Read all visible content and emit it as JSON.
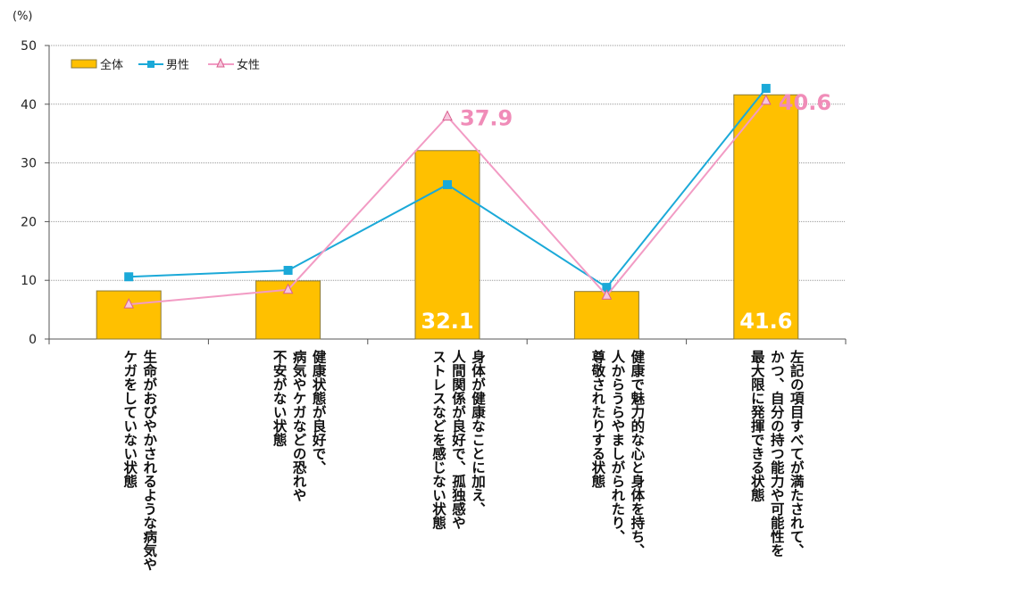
{
  "chart_data": {
    "type": "bar+line",
    "unit_label": "(%)",
    "ylim": [
      0,
      50
    ],
    "yticks": [
      0,
      10,
      20,
      30,
      40,
      50
    ],
    "grid": true,
    "legend_placement": "top-left",
    "categories": [
      "生命がおびやかされるような病気や\nケガをしていない状態",
      "健康状態が良好で、\n病気やケガなどの恐れや\n不安がない状態",
      "身体が健康なことに加え、\n人間関係が良好で、孤独感や\nストレスなどを感じない状態",
      "健康で魅力的な心と身体を持ち、\n人からうらやましがられたり、\n尊敬されたりする状態",
      "左記の項目すべてが満たされて、\nかつ、自分の持つ能力や可能性を\n最大限に発揮できる状態"
    ],
    "series": [
      {
        "name": "全体",
        "type": "bar",
        "color": "#FFC000",
        "values": [
          8.2,
          9.9,
          32.1,
          8.1,
          41.6
        ],
        "data_labels": [
          null,
          null,
          "32.1",
          null,
          "41.6"
        ]
      },
      {
        "name": "男性",
        "type": "line",
        "marker": "square",
        "color": "#1BA9D8",
        "values": [
          10.6,
          11.7,
          26.3,
          8.8,
          42.7
        ]
      },
      {
        "name": "女性",
        "type": "line",
        "marker": "triangle",
        "color": "#F29BC4",
        "values": [
          5.9,
          8.4,
          37.9,
          7.4,
          40.6
        ],
        "data_labels": [
          null,
          null,
          "37.9",
          null,
          "40.6"
        ]
      }
    ]
  }
}
